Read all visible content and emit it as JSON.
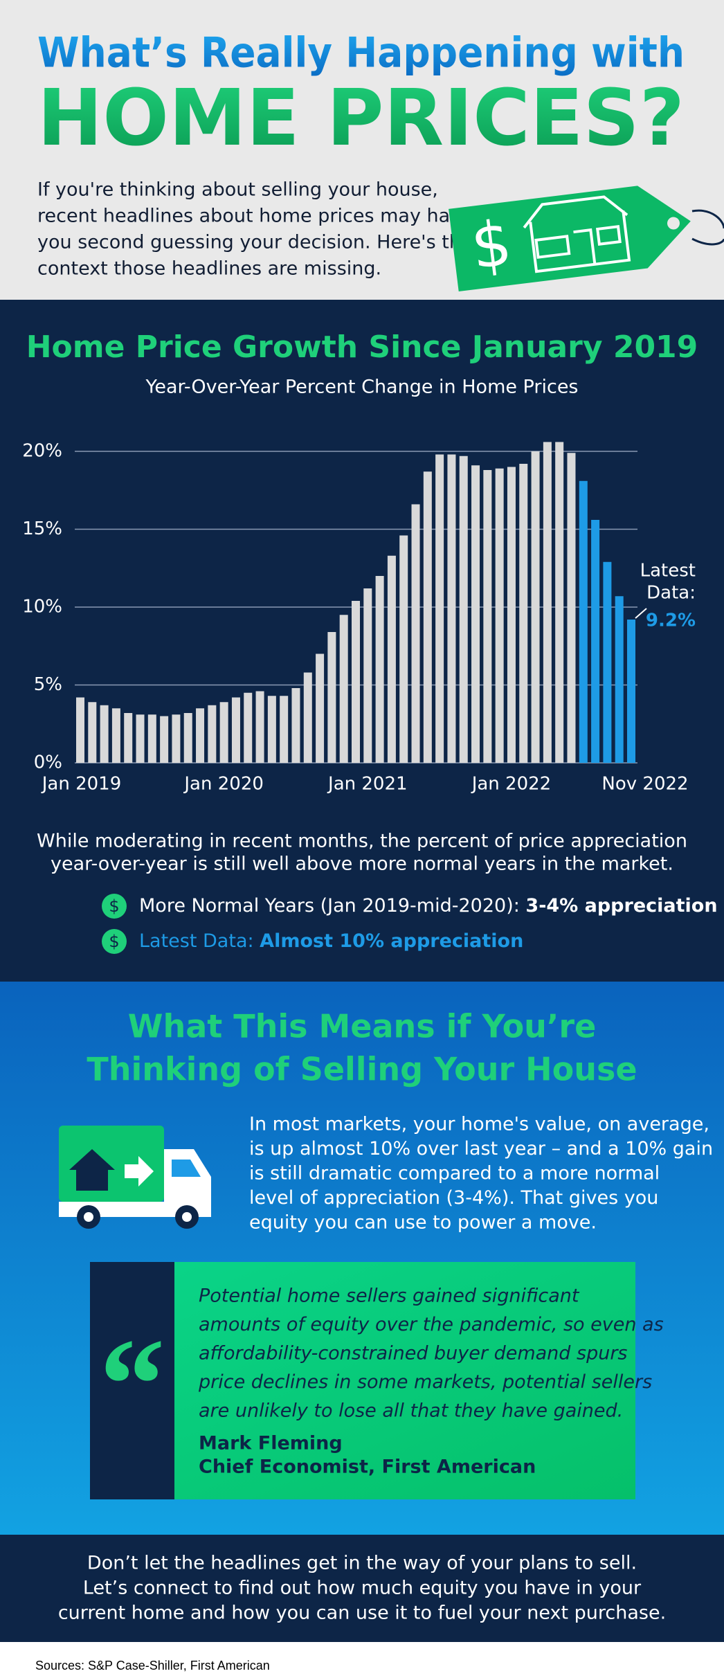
{
  "header": {
    "title_line1": "What’s Really Happening with",
    "title_line2": "HOME PRICES?",
    "intro": [
      "If you're thinking about selling your house,",
      "recent headlines about home prices may have",
      "you second guessing your decision. Here's the",
      "context those headlines are missing."
    ],
    "tag_symbol": "$"
  },
  "chart_data": {
    "type": "bar",
    "title": "Home Price Growth Since January 2019",
    "subtitle": "Year-Over-Year Percent Change in Home Prices",
    "categories": [
      "Jan 2019",
      null,
      null,
      null,
      null,
      null,
      null,
      null,
      null,
      null,
      null,
      null,
      "Jan 2020",
      null,
      null,
      null,
      null,
      null,
      null,
      null,
      null,
      null,
      null,
      null,
      "Jan 2021",
      null,
      null,
      null,
      null,
      null,
      null,
      null,
      null,
      null,
      null,
      null,
      "Jan 2022",
      null,
      null,
      null,
      null,
      null,
      null,
      null,
      null,
      null,
      "Nov 2022"
    ],
    "values": [
      4.2,
      3.9,
      3.7,
      3.5,
      3.2,
      3.1,
      3.1,
      3.0,
      3.1,
      3.2,
      3.5,
      3.7,
      3.9,
      4.2,
      4.5,
      4.6,
      4.3,
      4.3,
      4.8,
      5.8,
      7.0,
      8.4,
      9.5,
      10.4,
      11.2,
      12.0,
      13.3,
      14.6,
      16.6,
      18.7,
      19.8,
      19.8,
      19.7,
      19.1,
      18.8,
      18.9,
      19.0,
      19.2,
      20.0,
      20.6,
      20.6,
      19.9,
      18.1,
      15.6,
      12.9,
      10.7,
      9.2
    ],
    "colors": [
      "#d9d9d9",
      "#d9d9d9",
      "#d9d9d9",
      "#d9d9d9",
      "#d9d9d9",
      "#d9d9d9",
      "#d9d9d9",
      "#d9d9d9",
      "#d9d9d9",
      "#d9d9d9",
      "#d9d9d9",
      "#d9d9d9",
      "#d9d9d9",
      "#d9d9d9",
      "#d9d9d9",
      "#d9d9d9",
      "#d9d9d9",
      "#d9d9d9",
      "#d9d9d9",
      "#d9d9d9",
      "#d9d9d9",
      "#d9d9d9",
      "#d9d9d9",
      "#d9d9d9",
      "#d9d9d9",
      "#d9d9d9",
      "#d9d9d9",
      "#d9d9d9",
      "#d9d9d9",
      "#d9d9d9",
      "#d9d9d9",
      "#d9d9d9",
      "#d9d9d9",
      "#d9d9d9",
      "#d9d9d9",
      "#d9d9d9",
      "#d9d9d9",
      "#d9d9d9",
      "#d9d9d9",
      "#d9d9d9",
      "#d9d9d9",
      "#d9d9d9",
      "#1e9be6",
      "#1e9be6",
      "#1e9be6",
      "#1e9be6",
      "#1e9be6"
    ],
    "value_labels": [
      null,
      null,
      null,
      null,
      null,
      null,
      null,
      null,
      null,
      null,
      null,
      null,
      null,
      null,
      null,
      null,
      null,
      null,
      null,
      null,
      null,
      null,
      null,
      null,
      null,
      null,
      null,
      null,
      null,
      null,
      null,
      null,
      null,
      null,
      null,
      null,
      null,
      null,
      null,
      null,
      null,
      null,
      null,
      null,
      null,
      null,
      "9.2%"
    ],
    "annotation": [
      "Latest",
      "Data:"
    ],
    "ylim": [
      0,
      21
    ],
    "yticks": [
      {
        "value": 0,
        "label": "0%"
      },
      {
        "value": 5,
        "label": "5%"
      },
      {
        "value": 10,
        "label": "10%"
      },
      {
        "value": 15,
        "label": "15%"
      },
      {
        "value": 20,
        "label": "20%"
      }
    ],
    "grid": true
  },
  "chart_notes": {
    "paragraph": [
      "While moderating in recent months, the percent of price appreciation",
      "year-over-year is still well above more normal years in the market."
    ],
    "bullets": [
      {
        "icon": "$",
        "text": "More Normal Years (Jan 2019-mid-2020): ",
        "bold": "3-4% appreciation"
      },
      {
        "icon": "$",
        "text": "Latest Data: ",
        "bold": "Almost 10% appreciation"
      }
    ]
  },
  "selling": {
    "heading": [
      "What This Means if You’re",
      "Thinking of Selling Your House"
    ],
    "paragraph": [
      "In most markets, your home's value, on average,",
      "is up almost 10% over last year – and a 10% gain",
      "is still dramatic compared to a more normal",
      "level of appreciation (3-4%). That gives you",
      "equity you can use to power a move."
    ],
    "quote": {
      "mark": "“",
      "lines": [
        "Potential home sellers gained significant",
        "amounts of equity over the pandemic, so even as",
        "affordability-constrained buyer demand spurs",
        "price declines in some markets, potential sellers",
        "are unlikely to lose all that they have gained."
      ],
      "name": "Mark Fleming",
      "role": "Chief Economist, First American"
    }
  },
  "footer": {
    "lines": [
      "Don’t let the headlines get in the way of your plans to sell.",
      "Let’s connect to find out how much equity you have in your",
      "current home and how you can use it to fuel your next purchase."
    ],
    "sources": "Sources: S&P Case-Shiller, First American"
  }
}
